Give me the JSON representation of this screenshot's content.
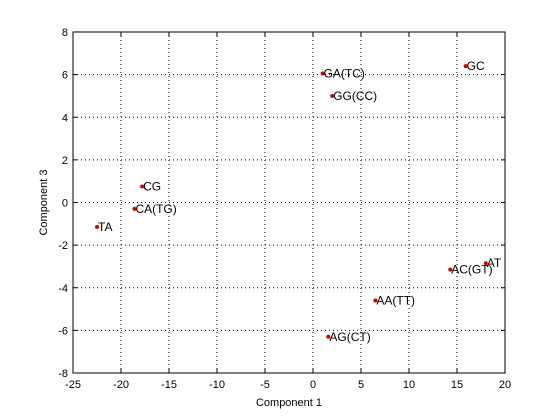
{
  "chart_data": {
    "type": "scatter",
    "title": "",
    "xlabel": "Component 1",
    "ylabel": "Component 3",
    "xlim": [
      -25,
      20
    ],
    "ylim": [
      -8,
      8
    ],
    "xticks": [
      -25,
      -20,
      -15,
      -10,
      -5,
      0,
      5,
      10,
      15,
      20
    ],
    "yticks": [
      -8,
      -6,
      -4,
      -2,
      0,
      2,
      4,
      6,
      8
    ],
    "grid": true,
    "grid_style": "dotted",
    "marker_color": "#d00000",
    "points": [
      {
        "label": "GA(TC)",
        "x": 1.0,
        "y": 6.05
      },
      {
        "label": "GC",
        "x": 15.9,
        "y": 6.4
      },
      {
        "label": "GG(CC)",
        "x": 2.0,
        "y": 5.0
      },
      {
        "label": "CG",
        "x": -17.8,
        "y": 0.75
      },
      {
        "label": "CA(TG)",
        "x": -18.6,
        "y": -0.3
      },
      {
        "label": "TA",
        "x": -22.5,
        "y": -1.15
      },
      {
        "label": "AT",
        "x": 18.0,
        "y": -2.85
      },
      {
        "label": "AC(GT)",
        "x": 14.3,
        "y": -3.15
      },
      {
        "label": "AA(TT)",
        "x": 6.5,
        "y": -4.6
      },
      {
        "label": "AG(CT)",
        "x": 1.6,
        "y": -6.3
      }
    ]
  }
}
